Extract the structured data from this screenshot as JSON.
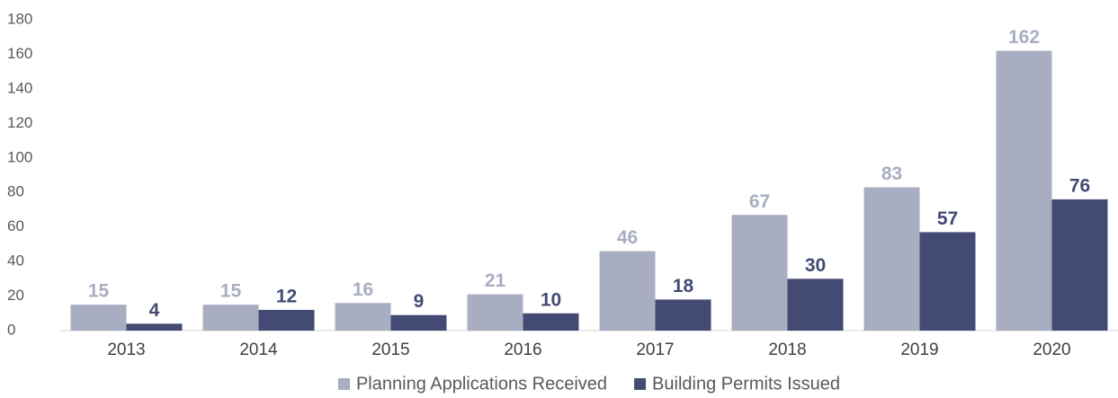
{
  "chart_data": {
    "type": "bar",
    "categories": [
      "2013",
      "2014",
      "2015",
      "2016",
      "2017",
      "2018",
      "2019",
      "2020"
    ],
    "series": [
      {
        "name": "Planning Applications Received",
        "color": "#a9adc1",
        "values": [
          15,
          15,
          16,
          21,
          46,
          67,
          83,
          162
        ]
      },
      {
        "name": "Building Permits Issued",
        "color": "#434a73",
        "values": [
          4,
          12,
          9,
          10,
          18,
          30,
          57,
          76
        ]
      }
    ],
    "ylim": [
      0,
      180
    ],
    "yticks": [
      0,
      20,
      40,
      60,
      80,
      100,
      120,
      140,
      160,
      180
    ],
    "grid": false
  }
}
